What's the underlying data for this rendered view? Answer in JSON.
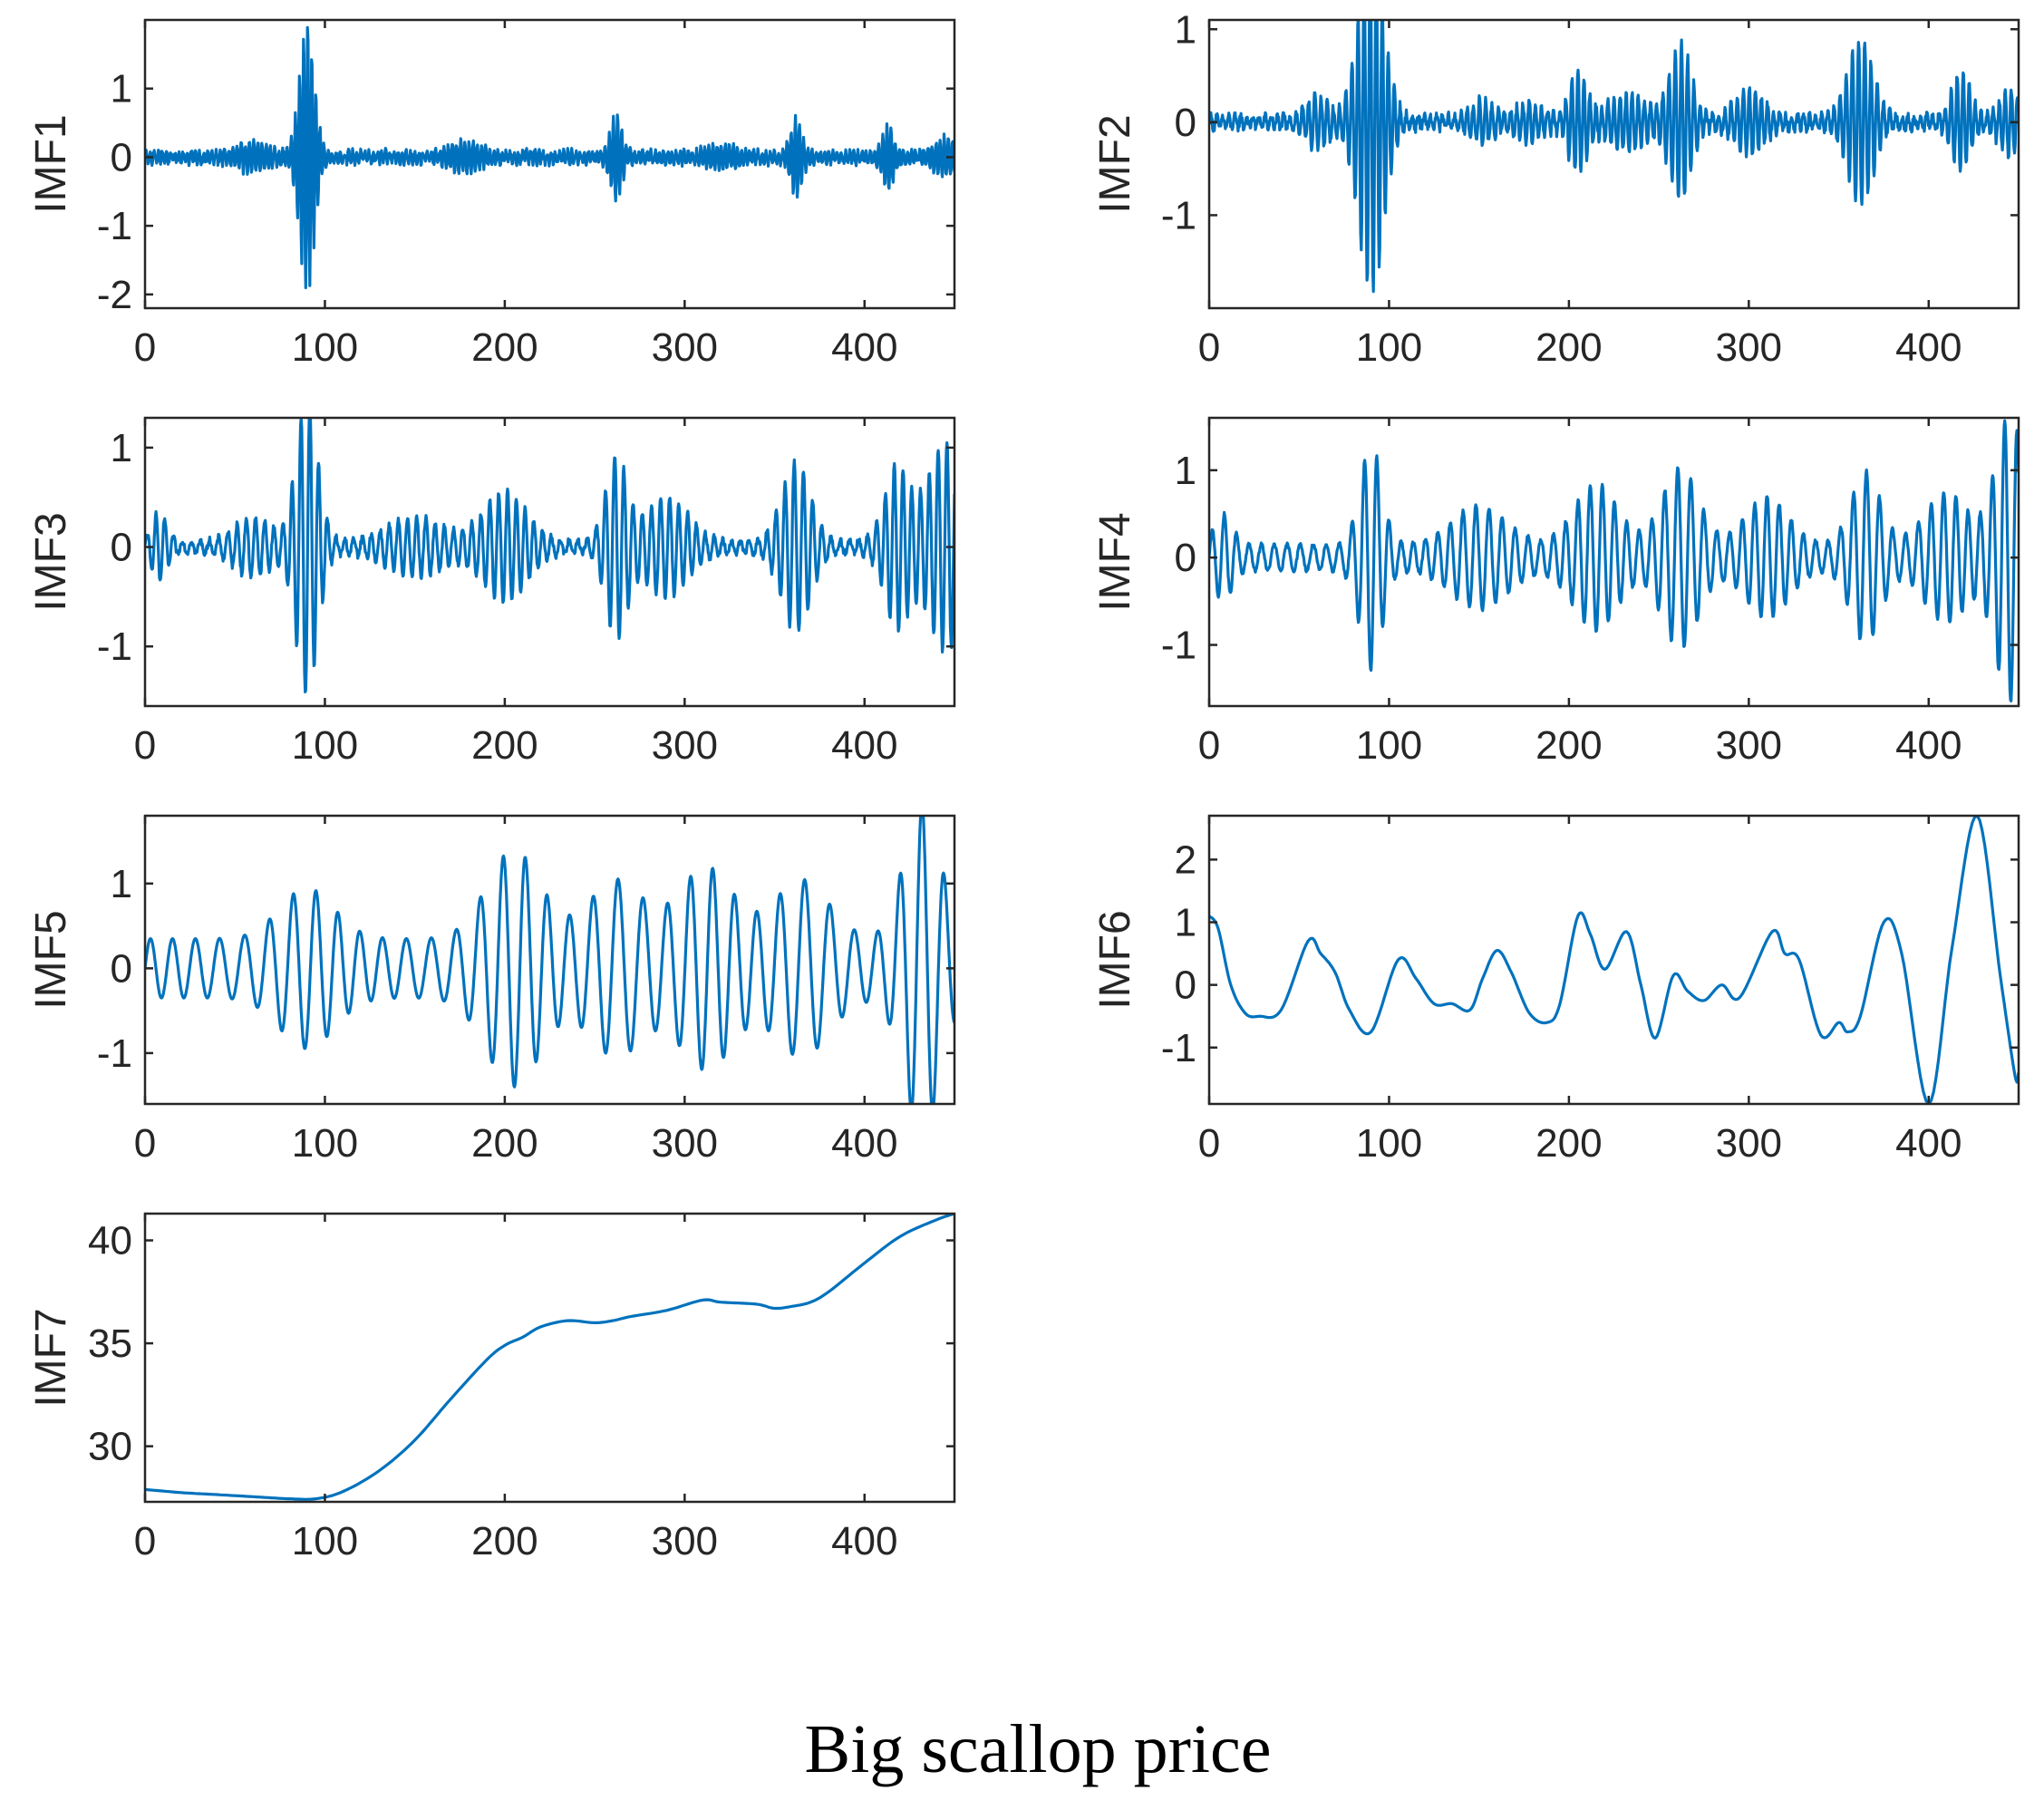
{
  "figure_caption": "Big scallop price",
  "colors": {
    "line": "#0072BD",
    "axes": "#262626"
  },
  "chart_data": [
    {
      "id": "imf1",
      "type": "line",
      "ylabel": "IMF1",
      "xlim": [
        0,
        450
      ],
      "ylim": [
        -2.2,
        2.0
      ],
      "xticks": [
        0,
        100,
        200,
        300,
        400
      ],
      "yticks": [
        1,
        0,
        -1,
        -2
      ],
      "series": [
        {
          "name": "IMF1",
          "pattern": "hf",
          "noise": 0.05,
          "amp": 0.08,
          "period": 2.3,
          "bursts": [
            [
              90,
              1.9,
              4
            ],
            [
              60,
              0.15,
              8
            ],
            [
              262,
              0.55,
              3
            ],
            [
              362,
              0.5,
              3
            ],
            [
              413,
              0.4,
              3
            ],
            [
              445,
              0.22,
              6
            ],
            [
              178,
              0.15,
              8
            ],
            [
              320,
              0.12,
              8
            ]
          ]
        }
      ]
    },
    {
      "id": "imf2",
      "type": "line",
      "ylabel": "IMF2",
      "xlim": [
        0,
        450
      ],
      "ylim": [
        -2.0,
        1.1
      ],
      "xticks": [
        0,
        100,
        200,
        300,
        400
      ],
      "yticks": [
        1,
        0,
        -1
      ],
      "series": [
        {
          "name": "IMF2",
          "pattern": "hf",
          "noise": 0.05,
          "amp": 0.06,
          "period": 3.4,
          "bursts": [
            [
              90,
              1.8,
              7
            ],
            [
              60,
              0.25,
              6
            ],
            [
              152,
              0.2,
              6
            ],
            [
              205,
              0.5,
              5
            ],
            [
              262,
              0.8,
              6
            ],
            [
              300,
              0.3,
              8
            ],
            [
              362,
              0.85,
              7
            ],
            [
              418,
              0.5,
              5
            ],
            [
              445,
              0.3,
              6
            ],
            [
              232,
              0.25,
              10
            ],
            [
              178,
              0.15,
              8
            ]
          ]
        }
      ]
    },
    {
      "id": "imf3",
      "type": "line",
      "ylabel": "IMF3",
      "xlim": [
        0,
        450
      ],
      "ylim": [
        -1.6,
        1.3
      ],
      "xticks": [
        0,
        100,
        200,
        300,
        400
      ],
      "yticks": [
        1,
        0,
        -1
      ],
      "series": [
        {
          "name": "IMF3",
          "pattern": "hf",
          "noise": 0.03,
          "amp": 0.06,
          "period": 5,
          "bursts": [
            [
              90,
              1.45,
              6
            ],
            [
              8,
              0.3,
              4
            ],
            [
              60,
              0.25,
              10
            ],
            [
              200,
              0.5,
              12
            ],
            [
              262,
              0.85,
              6
            ],
            [
              290,
              0.45,
              12
            ],
            [
              362,
              0.8,
              8
            ],
            [
              418,
              0.75,
              7
            ],
            [
              445,
              1.0,
              10
            ],
            [
              150,
              0.25,
              15
            ]
          ]
        }
      ]
    },
    {
      "id": "imf4",
      "type": "line",
      "ylabel": "IMF4",
      "xlim": [
        0,
        450
      ],
      "ylim": [
        -1.7,
        1.6
      ],
      "xticks": [
        0,
        100,
        200,
        300,
        400
      ],
      "yticks": [
        1,
        0,
        -1
      ],
      "series": [
        {
          "name": "IMF4",
          "pattern": "hf",
          "noise": 0.02,
          "amp": 0.15,
          "period": 7,
          "bursts": [
            [
              90,
              1.15,
              6
            ],
            [
              8,
              0.35,
              5
            ],
            [
              150,
              0.45,
              15
            ],
            [
              215,
              0.7,
              12
            ],
            [
              262,
              0.9,
              10
            ],
            [
              310,
              0.55,
              12
            ],
            [
              365,
              0.85,
              8
            ],
            [
              410,
              0.6,
              12
            ],
            [
              445,
              1.5,
              8
            ]
          ]
        }
      ]
    },
    {
      "id": "imf5",
      "type": "line",
      "ylabel": "IMF5",
      "xlim": [
        0,
        450
      ],
      "ylim": [
        -1.6,
        1.8
      ],
      "xticks": [
        0,
        100,
        200,
        300,
        400
      ],
      "yticks": [
        1,
        0,
        -1
      ],
      "series": [
        {
          "name": "IMF5",
          "pattern": "hf",
          "noise": 0.0,
          "amp": 0.35,
          "period": 13,
          "bursts": [
            [
              90,
              0.6,
              15
            ],
            [
              205,
              1.05,
              15
            ],
            [
              262,
              0.7,
              15
            ],
            [
              312,
              0.85,
              15
            ],
            [
              365,
              0.7,
              15
            ],
            [
              432,
              1.6,
              10
            ]
          ]
        }
      ]
    },
    {
      "id": "imf6",
      "type": "line",
      "ylabel": "IMF6",
      "xlim": [
        0,
        450
      ],
      "ylim": [
        -1.9,
        2.7
      ],
      "xticks": [
        0,
        100,
        200,
        300,
        400
      ],
      "yticks": [
        2,
        1,
        0,
        -1
      ],
      "series": [
        {
          "name": "IMF6",
          "pattern": "points",
          "x": [
            0,
            5,
            12,
            20,
            28,
            40,
            55,
            62,
            70,
            78,
            90,
            105,
            115,
            125,
            135,
            145,
            152,
            160,
            168,
            178,
            188,
            195,
            205,
            212,
            220,
            232,
            240,
            248,
            258,
            266,
            275,
            285,
            295,
            313,
            320,
            328,
            340,
            350,
            355,
            362,
            375,
            385,
            400,
            413,
            427,
            440,
            448,
            450
          ],
          "y": [
            1.1,
            0.9,
            0.0,
            -0.45,
            -0.5,
            -0.4,
            0.7,
            0.5,
            0.2,
            -0.4,
            -0.75,
            0.4,
            0.1,
            -0.3,
            -0.3,
            -0.4,
            0.1,
            0.55,
            0.2,
            -0.45,
            -0.6,
            -0.3,
            1.1,
            0.8,
            0.25,
            0.85,
            0.0,
            -0.85,
            0.15,
            -0.1,
            -0.25,
            0.0,
            -0.2,
            0.85,
            0.5,
            0.4,
            -0.8,
            -0.6,
            -0.75,
            -0.5,
            1.0,
            0.5,
            -1.9,
            0.6,
            2.7,
            0.1,
            -1.45,
            -1.4
          ]
        }
      ]
    },
    {
      "id": "imf7",
      "type": "line",
      "ylabel": "IMF7",
      "xlim": [
        0,
        450
      ],
      "ylim": [
        27.3,
        41.3
      ],
      "xticks": [
        0,
        100,
        200,
        300,
        400
      ],
      "yticks": [
        40,
        35,
        30
      ],
      "series": [
        {
          "name": "IMF7",
          "pattern": "points",
          "x": [
            0,
            20,
            40,
            60,
            80,
            95,
            110,
            130,
            150,
            170,
            190,
            200,
            210,
            220,
            235,
            250,
            260,
            270,
            290,
            310,
            320,
            340,
            350,
            360,
            370,
            380,
            400,
            420,
            440,
            450
          ],
          "y": [
            27.9,
            27.75,
            27.65,
            27.55,
            27.45,
            27.45,
            27.8,
            28.8,
            30.3,
            32.3,
            34.2,
            34.9,
            35.3,
            35.8,
            36.1,
            36.0,
            36.1,
            36.3,
            36.6,
            37.1,
            37.0,
            36.9,
            36.7,
            36.8,
            37.0,
            37.5,
            38.9,
            40.2,
            41.0,
            41.3
          ]
        }
      ]
    }
  ]
}
